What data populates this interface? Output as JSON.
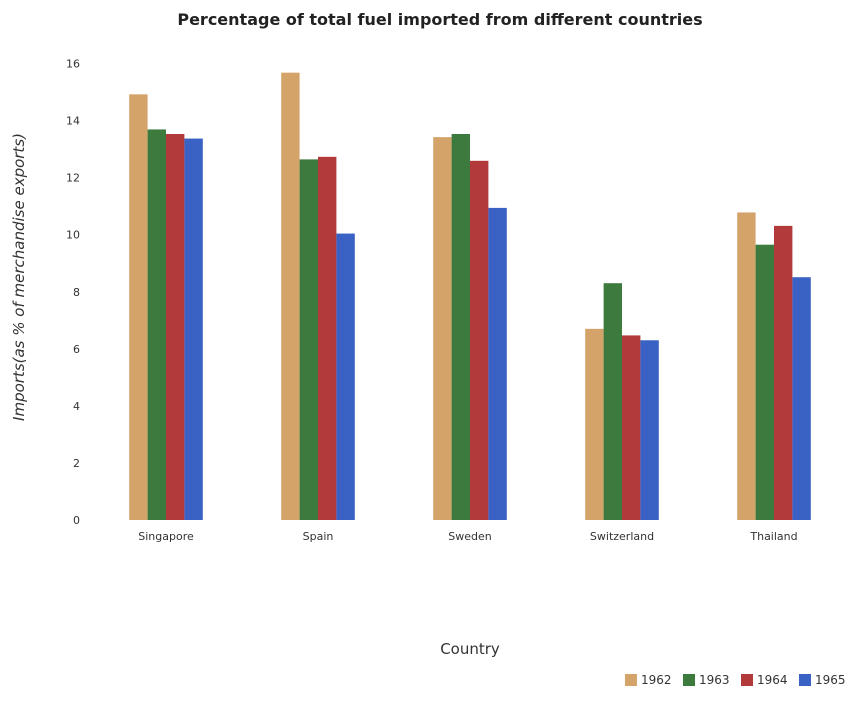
{
  "chart_data": {
    "type": "bar",
    "title": "Percentage of total fuel imported from different countries",
    "xlabel": "Country",
    "ylabel": "Imports(as % of merchandise exports)",
    "categories": [
      "Singapore",
      "Spain",
      "Sweden",
      "Switzerland",
      "Thailand"
    ],
    "series": [
      {
        "name": "1962",
        "color": "#d4a36a",
        "values": [
          14.92,
          15.68,
          13.42,
          6.7,
          10.78
        ]
      },
      {
        "name": "1963",
        "color": "#3d7a3d",
        "values": [
          13.69,
          12.64,
          13.53,
          8.3,
          9.65
        ]
      },
      {
        "name": "1964",
        "color": "#b33a3a",
        "values": [
          13.53,
          12.73,
          12.59,
          6.47,
          10.31
        ]
      },
      {
        "name": "1965",
        "color": "#3a62c4",
        "values": [
          13.37,
          10.04,
          10.94,
          6.3,
          8.51
        ]
      }
    ],
    "ylim": [
      0,
      17
    ],
    "yticks": [
      "0",
      "2",
      "4",
      "6",
      "8",
      "10",
      "12",
      "14",
      "16"
    ],
    "grid": false,
    "legend_position": "bottom-right"
  }
}
